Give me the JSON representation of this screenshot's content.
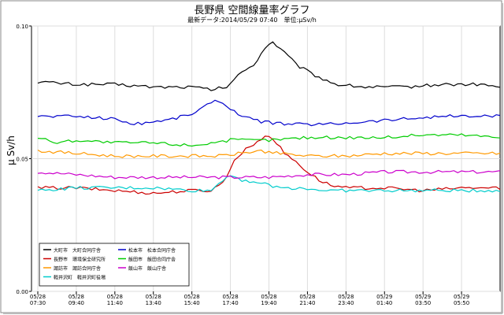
{
  "chart_data": {
    "type": "line",
    "title": "長野県 空間線量率グラフ",
    "subtitle": "最新データ:2014/05/29 07:40　単位:μSv/h",
    "ylabel": "μ Sv/h",
    "xlabel": "",
    "ylim": [
      0,
      0.1
    ],
    "yticks": [
      "0.00",
      "0.05",
      "0.10"
    ],
    "xlim": [
      0,
      24
    ],
    "xtick_positions": [
      0,
      2,
      4,
      6,
      8,
      10,
      12,
      14,
      16,
      18,
      20,
      22
    ],
    "xtick_dates": [
      "05/28",
      "05/28",
      "05/28",
      "05/28",
      "05/28",
      "05/28",
      "05/28",
      "05/28",
      "05/28",
      "05/29",
      "05/29",
      "05/29"
    ],
    "xtick_times": [
      "07:30",
      "09:40",
      "11:40",
      "13:40",
      "15:40",
      "17:40",
      "19:40",
      "21:40",
      "23:40",
      "01:40",
      "03:50",
      "05:50"
    ],
    "grid": true,
    "legend_position": "bottom-left",
    "series": [
      {
        "name": "大町市　大町合同庁舎",
        "color": "#000000",
        "points": [
          [
            0,
            0.079
          ],
          [
            2,
            0.078
          ],
          [
            4,
            0.078
          ],
          [
            6,
            0.077
          ],
          [
            8,
            0.077
          ],
          [
            9,
            0.076
          ],
          [
            9.8,
            0.077
          ],
          [
            10.5,
            0.082
          ],
          [
            11.3,
            0.086
          ],
          [
            11.8,
            0.092
          ],
          [
            12.2,
            0.094
          ],
          [
            12.8,
            0.09
          ],
          [
            13.5,
            0.085
          ],
          [
            14.5,
            0.081
          ],
          [
            15.5,
            0.078
          ],
          [
            17,
            0.077
          ],
          [
            19,
            0.077
          ],
          [
            21,
            0.078
          ],
          [
            23,
            0.078
          ],
          [
            24,
            0.077
          ]
        ]
      },
      {
        "name": "長野市　環境保全研究所",
        "color": "#cc0000",
        "points": [
          [
            0,
            0.039
          ],
          [
            2,
            0.039
          ],
          [
            4,
            0.038
          ],
          [
            6,
            0.037
          ],
          [
            8,
            0.038
          ],
          [
            9,
            0.038
          ],
          [
            9.6,
            0.041
          ],
          [
            10.2,
            0.049
          ],
          [
            10.8,
            0.054
          ],
          [
            11.4,
            0.056
          ],
          [
            11.8,
            0.059
          ],
          [
            12.3,
            0.057
          ],
          [
            12.8,
            0.052
          ],
          [
            13.4,
            0.049
          ],
          [
            14,
            0.045
          ],
          [
            14.6,
            0.042
          ],
          [
            15.2,
            0.04
          ],
          [
            16,
            0.039
          ],
          [
            18,
            0.039
          ],
          [
            20,
            0.038
          ],
          [
            22,
            0.039
          ],
          [
            24,
            0.039
          ]
        ]
      },
      {
        "name": "諏訪市　諏訪合同庁舎",
        "color": "#ff9900",
        "points": [
          [
            0,
            0.053
          ],
          [
            2,
            0.052
          ],
          [
            4,
            0.051
          ],
          [
            6,
            0.051
          ],
          [
            8,
            0.051
          ],
          [
            9.5,
            0.051
          ],
          [
            10.5,
            0.052
          ],
          [
            11.5,
            0.053
          ],
          [
            12.5,
            0.052
          ],
          [
            14,
            0.051
          ],
          [
            16,
            0.051
          ],
          [
            18,
            0.052
          ],
          [
            20,
            0.052
          ],
          [
            22,
            0.052
          ],
          [
            24,
            0.052
          ]
        ]
      },
      {
        "name": "軽井沢町　軽井沢町役場",
        "color": "#00cccc",
        "points": [
          [
            0,
            0.038
          ],
          [
            2,
            0.039
          ],
          [
            4,
            0.039
          ],
          [
            6,
            0.039
          ],
          [
            8,
            0.038
          ],
          [
            9,
            0.038
          ],
          [
            9.6,
            0.042
          ],
          [
            10,
            0.044
          ],
          [
            10.6,
            0.042
          ],
          [
            11.5,
            0.041
          ],
          [
            12.5,
            0.039
          ],
          [
            13.5,
            0.039
          ],
          [
            15,
            0.038
          ],
          [
            17,
            0.038
          ],
          [
            19,
            0.038
          ],
          [
            21,
            0.038
          ],
          [
            23,
            0.038
          ],
          [
            24,
            0.038
          ]
        ]
      },
      {
        "name": "松本市　松本合同庁舎",
        "color": "#0000cc",
        "points": [
          [
            0,
            0.066
          ],
          [
            2,
            0.066
          ],
          [
            4,
            0.065
          ],
          [
            5,
            0.063
          ],
          [
            6,
            0.064
          ],
          [
            7,
            0.065
          ],
          [
            8,
            0.067
          ],
          [
            9,
            0.071
          ],
          [
            9.4,
            0.072
          ],
          [
            10,
            0.069
          ],
          [
            10.6,
            0.066
          ],
          [
            11.5,
            0.064
          ],
          [
            13,
            0.063
          ],
          [
            15,
            0.063
          ],
          [
            17,
            0.064
          ],
          [
            19,
            0.065
          ],
          [
            21,
            0.066
          ],
          [
            23,
            0.066
          ],
          [
            24,
            0.066
          ]
        ]
      },
      {
        "name": "飯田市　飯田合同庁舎",
        "color": "#00cc00",
        "points": [
          [
            0,
            0.058
          ],
          [
            1,
            0.056
          ],
          [
            2,
            0.057
          ],
          [
            4,
            0.056
          ],
          [
            6,
            0.056
          ],
          [
            8,
            0.055
          ],
          [
            10,
            0.057
          ],
          [
            12,
            0.057
          ],
          [
            14,
            0.058
          ],
          [
            16,
            0.058
          ],
          [
            18,
            0.058
          ],
          [
            20,
            0.059
          ],
          [
            22,
            0.059
          ],
          [
            24,
            0.058
          ]
        ]
      },
      {
        "name": "飯山市　飯山庁舎",
        "color": "#cc00cc",
        "points": [
          [
            0,
            0.045
          ],
          [
            2,
            0.044
          ],
          [
            4,
            0.043
          ],
          [
            6,
            0.043
          ],
          [
            8,
            0.043
          ],
          [
            10,
            0.043
          ],
          [
            12,
            0.043
          ],
          [
            14,
            0.044
          ],
          [
            16,
            0.044
          ],
          [
            18,
            0.045
          ],
          [
            20,
            0.045
          ],
          [
            22,
            0.045
          ],
          [
            24,
            0.045
          ]
        ]
      }
    ]
  }
}
